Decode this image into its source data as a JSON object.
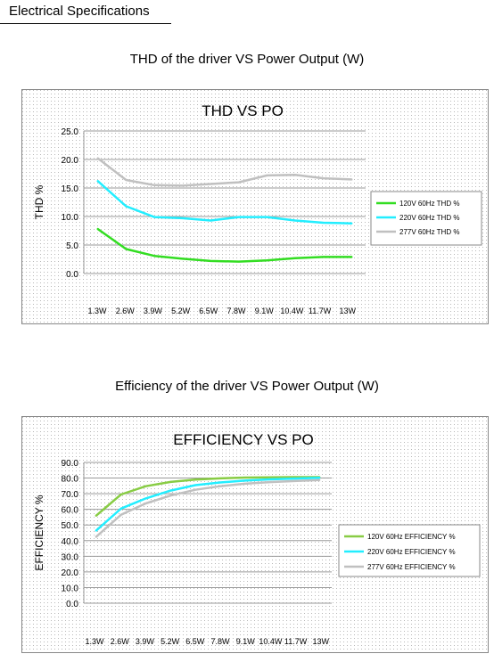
{
  "page": {
    "section_title": "Electrical Specifications"
  },
  "captions": [
    "THD of the driver VS Power Output (W)",
    "Efficiency of the driver VS Power Output (W)"
  ],
  "chart_data": [
    {
      "type": "line",
      "title": "THD VS PO",
      "xlabel": "",
      "ylabel": "THD %",
      "categories": [
        "1.3W",
        "2.6W",
        "3.9W",
        "5.2W",
        "6.5W",
        "7.8W",
        "9.1W",
        "10.4W",
        "11.7W",
        "13W"
      ],
      "ylim": [
        0,
        25
      ],
      "yticks": [
        "0.0",
        "5.0",
        "10.0",
        "15.0",
        "20.0",
        "25.0"
      ],
      "grid": true,
      "legend": "right",
      "series": [
        {
          "name": "120V 60Hz  THD %",
          "color": "#33dd22",
          "values": [
            7.8,
            4.3,
            3.1,
            2.6,
            2.2,
            2.1,
            2.3,
            2.7,
            2.9,
            2.9
          ]
        },
        {
          "name": "220V 60Hz THD %",
          "color": "#22eeff",
          "values": [
            16.2,
            11.8,
            9.9,
            9.7,
            9.3,
            9.9,
            9.9,
            9.3,
            8.9,
            8.8
          ]
        },
        {
          "name": "277V 60Hz  THD %",
          "color": "#c0c0c0",
          "values": [
            20.2,
            16.4,
            15.5,
            15.4,
            15.7,
            16.0,
            17.2,
            17.3,
            16.7,
            16.5
          ]
        }
      ]
    },
    {
      "type": "line",
      "title": "EFFICIENCY VS PO",
      "xlabel": "",
      "ylabel": "EFFICIENCY %",
      "categories": [
        "1.3W",
        "2.6W",
        "3.9W",
        "5.2W",
        "6.5W",
        "7.8W",
        "9.1W",
        "10.4W",
        "11.7W",
        "13W"
      ],
      "ylim": [
        0,
        90
      ],
      "yticks": [
        "0.0",
        "10.0",
        "20.0",
        "30.0",
        "40.0",
        "50.0",
        "60.0",
        "70.0",
        "80.0",
        "90.0"
      ],
      "grid": true,
      "legend": "right",
      "series": [
        {
          "name": "120V 60Hz  EFFICIENCY %",
          "color": "#88cc44",
          "values": [
            56,
            69.5,
            74.8,
            77.5,
            79,
            79.8,
            80.3,
            80.5,
            80.6,
            80.6
          ]
        },
        {
          "name": "220V 60Hz EFFICIENCY %",
          "color": "#22eeff",
          "values": [
            46.5,
            60.5,
            67,
            72,
            75.5,
            77.2,
            78.4,
            79.2,
            79.7,
            80.2
          ]
        },
        {
          "name": "277V 60Hz  EFFICIENCY %",
          "color": "#c0c0c0",
          "values": [
            42.5,
            56.5,
            63.8,
            68.8,
            72.5,
            74.8,
            76.4,
            77.4,
            78.1,
            78.8
          ]
        }
      ]
    }
  ]
}
